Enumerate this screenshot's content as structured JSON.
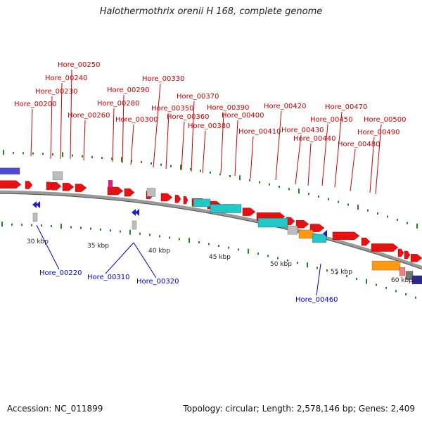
{
  "title": "Halothermothrix orenii H 168, complete genome",
  "footer": {
    "accession": "Accession: NC_011899",
    "summary": "Topology: circular; Length: 2,578,146 bp; Genes: 2,409"
  },
  "colors": {
    "forward_label": "#cc0000",
    "reverse_label": "#0000cc",
    "cds": "#e81010",
    "rna_cyan": "#20c8c8",
    "orange": "#ff9a10",
    "grey": "#bdbdbd",
    "backbone": "#8c8c8c",
    "tick": "#1a8a1a"
  },
  "scale_labels": [
    "30 kbp",
    "35 kbp",
    "40 kbp",
    "45 kbp",
    "50 kbp",
    "55 kbp",
    "60 kbp"
  ],
  "forward_labels": [
    "Hore_00200",
    "Hore_00230",
    "Hore_00240",
    "Hore_00250",
    "Hore_00260",
    "Hore_00280",
    "Hore_00290",
    "Hore_00300",
    "Hore_00330",
    "Hore_00350",
    "Hore_00360",
    "Hore_00370",
    "Hore_00380",
    "Hore_00390",
    "Hore_00400",
    "Hore_00410",
    "Hore_00420",
    "Hore_00430",
    "Hore_00440",
    "Hore_00450",
    "Hore_00470",
    "Hore_00480",
    "Hore_00490",
    "Hore_00500"
  ],
  "reverse_labels": [
    "Hore_00220",
    "Hore_00310",
    "Hore_00320",
    "Hore_00460"
  ]
}
